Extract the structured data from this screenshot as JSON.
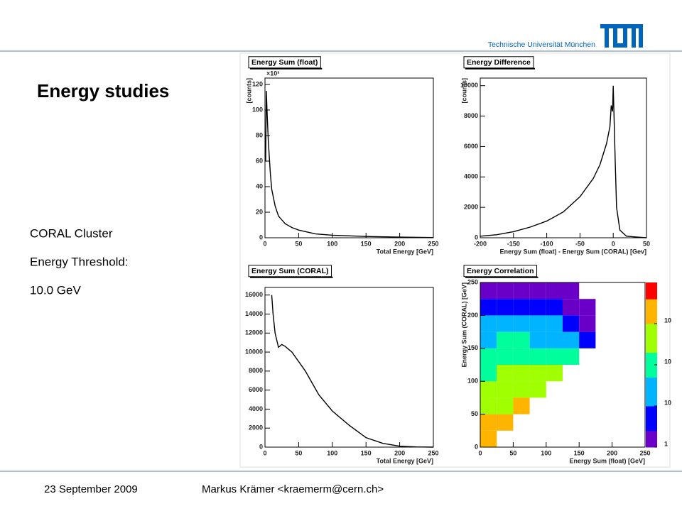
{
  "header": {
    "institution": "Technische Universität München"
  },
  "title": "Energy studies",
  "body": [
    "CORAL Cluster",
    "Energy Threshold:",
    "10.0 GeV"
  ],
  "footer": {
    "date": "23 September 2009",
    "author": "Markus Krämer <kraemerm@cern.ch>"
  },
  "chart_data": [
    {
      "type": "line",
      "title": "Energy Sum (float)",
      "x_label": "Total Energy [GeV]",
      "y_label": "[counts]",
      "y_multiplier": "×10³",
      "x": [
        1,
        2,
        3,
        5,
        8,
        10,
        15,
        20,
        30,
        40,
        50,
        75,
        100,
        150,
        200,
        250
      ],
      "values": [
        60,
        115,
        100,
        75,
        50,
        38,
        25,
        17,
        11,
        8,
        6,
        3,
        2,
        1,
        0.5,
        0.2
      ],
      "xlim": [
        0,
        250
      ],
      "xticks": [
        0,
        50,
        100,
        150,
        200,
        250
      ],
      "ylim": [
        0,
        125
      ],
      "yticks": [
        0,
        20,
        40,
        60,
        80,
        100,
        120
      ],
      "color": "#000000"
    },
    {
      "type": "line",
      "title": "Energy Difference",
      "x_label": "Energy Sum (float) - Energy Sum (CORAL) [Gev]",
      "y_label": "[counts]",
      "x": [
        -200,
        -175,
        -150,
        -125,
        -100,
        -75,
        -50,
        -30,
        -20,
        -10,
        -5,
        -3,
        -1,
        0,
        3,
        5,
        10,
        20,
        50
      ],
      "values": [
        100,
        200,
        400,
        700,
        1100,
        1700,
        2700,
        3900,
        4800,
        6200,
        7300,
        8700,
        8300,
        10000,
        5000,
        2000,
        500,
        100,
        0
      ],
      "xlim": [
        -200,
        50
      ],
      "xticks": [
        -200,
        -150,
        -100,
        -50,
        0,
        50
      ],
      "ylim": [
        0,
        10500
      ],
      "yticks": [
        0,
        2000,
        4000,
        6000,
        8000,
        10000
      ],
      "color": "#000000"
    },
    {
      "type": "line",
      "title": "Energy Sum (CORAL)",
      "x_label": "Total Energy [GeV]",
      "x": [
        10,
        12,
        15,
        20,
        25,
        30,
        40,
        50,
        60,
        80,
        100,
        125,
        150,
        175,
        200,
        225,
        250
      ],
      "values": [
        16000,
        14000,
        12000,
        10500,
        10800,
        10600,
        10000,
        9000,
        8000,
        5500,
        3800,
        2300,
        1000,
        400,
        100,
        20,
        0
      ],
      "xlim": [
        0,
        250
      ],
      "xticks": [
        0,
        50,
        100,
        150,
        200,
        250
      ],
      "ylim": [
        0,
        16800
      ],
      "yticks": [
        0,
        2000,
        4000,
        6000,
        8000,
        10000,
        12000,
        14000,
        16000
      ],
      "color": "#000000"
    },
    {
      "type": "heatmap",
      "title": "Energy Correlation",
      "x_label": "Energy Sum (float) [GeV]",
      "y_label": "Energy Sum (CORAL) [GeV]",
      "xbins": [
        0,
        25,
        50,
        75,
        100,
        125,
        150,
        175,
        200,
        225,
        250
      ],
      "ybins": [
        0,
        25,
        50,
        75,
        100,
        125,
        150,
        175,
        200,
        225,
        250
      ],
      "z": [
        [
          3000,
          0,
          0,
          0,
          0,
          0,
          0,
          0,
          0,
          0
        ],
        [
          1500,
          2000,
          0,
          0,
          0,
          0,
          0,
          0,
          0,
          0
        ],
        [
          800,
          900,
          1200,
          0,
          0,
          0,
          0,
          0,
          0,
          0
        ],
        [
          400,
          500,
          500,
          600,
          0,
          0,
          0,
          0,
          0,
          0
        ],
        [
          200,
          250,
          250,
          250,
          250,
          0,
          0,
          0,
          0,
          0
        ],
        [
          90,
          110,
          110,
          100,
          90,
          60,
          0,
          0,
          0,
          0
        ],
        [
          40,
          50,
          50,
          40,
          30,
          20,
          5,
          0,
          0,
          0
        ],
        [
          15,
          20,
          20,
          15,
          10,
          6,
          2,
          0,
          0,
          0
        ],
        [
          5,
          6,
          6,
          5,
          3,
          2,
          1,
          0,
          0,
          0
        ],
        [
          2,
          2,
          2,
          2,
          1,
          1,
          0,
          0,
          0,
          0
        ]
      ],
      "xlim": [
        0,
        250
      ],
      "xticks": [
        0,
        50,
        100,
        150,
        200,
        250
      ],
      "ylim": [
        0,
        250
      ],
      "yticks": [
        0,
        50,
        100,
        150,
        200,
        250
      ],
      "zlim": [
        1,
        10000
      ],
      "zscale": "log",
      "zticks": [
        1,
        {
          "value": 10,
          "label": "10"
        },
        {
          "value": 100,
          "label": "10"
        },
        {
          "value": 1000,
          "label": "10"
        }
      ],
      "colormap": [
        "#6a00c8",
        "#0000ff",
        "#00b4ff",
        "#00ff9c",
        "#a0ff00",
        "#ffb400",
        "#ff0000"
      ]
    }
  ]
}
